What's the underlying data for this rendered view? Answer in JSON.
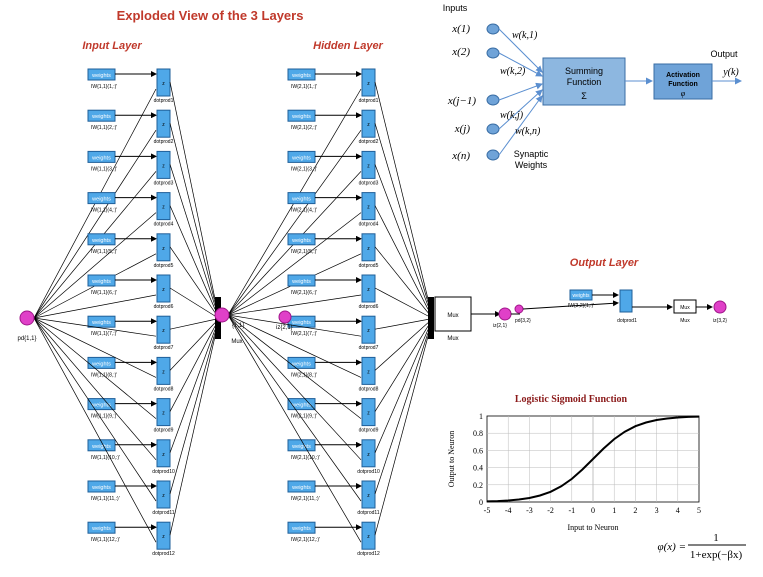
{
  "title": "Exploded View of the 3 Layers",
  "input_layer": {
    "heading": "Input Layer",
    "port_label": "pd{1,1}",
    "weight_label": "weights",
    "weight_tags": [
      "IW{1,1}(1,:)'",
      "IW{1,1}(2,:)'",
      "IW{1,1}(3,:)'",
      "IW{1,1}(4,:)'",
      "IW{1,1}(5,:)'",
      "IW{1,1}(6,:)'",
      "IW{1,1}(7,:)'",
      "IW{1,1}(8,:)'",
      "IW{1,1}(9,:)'",
      "IW{1,1}(10,:)'",
      "IW{1,1}(11,:)'",
      "IW{1,1}(12,:)'"
    ],
    "dot_tags": [
      "dotprod1",
      "dotprod2",
      "dotprod3",
      "dotprod4",
      "dotprod5",
      "dotprod6",
      "dotprod7",
      "dotprod8",
      "dotprod9",
      "dotprod10",
      "dotprod11",
      "dotprod12"
    ],
    "mux_label": "Mux",
    "out_port_label": "{1,1}"
  },
  "hidden_layer": {
    "heading": "Hidden Layer",
    "weight_label": "weights",
    "in_port_label": "iz{2,1}",
    "weight_tags": [
      "IW{2,1}(1,:)'",
      "IW{2,1}(2,:)'",
      "IW{2,1}(3,:)'",
      "IW{2,1}(4,:)'",
      "IW{2,1}(5,:)'",
      "IW{2,1}(6,:)'",
      "IW{2,1}(7,:)'",
      "IW{2,1}(8,:)'",
      "IW{2,1}(9,:)'",
      "IW{2,1}(10,:)'",
      "IW{2,1}(11,:)'",
      "IW{2,1}(12,:)'"
    ],
    "dot_tags": [
      "dotprod1",
      "dotprod2",
      "dotprod3",
      "dotprod4",
      "dotprod5",
      "dotprod6",
      "dotprod7",
      "dotprod8",
      "dotprod9",
      "dotprod10",
      "dotprod11",
      "dotprod12"
    ],
    "mux_label": "Mux",
    "mux_tag": "Mux"
  },
  "output_layer": {
    "heading": "Output Layer",
    "in_port_label": "iz{2,1}",
    "port2_label": "pd{3,2}",
    "weight_label": "weights",
    "weight_tag": "IW{3,2}(1,:)'",
    "dot_tag": "dotprod1",
    "mux_label": "Mux",
    "mux_tag": "Mux",
    "out_port_label": "iz{3,2}"
  },
  "neuron_model": {
    "inputs_label": "Inputs",
    "inputs": [
      "x(1)",
      "x(2)",
      "x(j−1)",
      "x(j)",
      "x(n)"
    ],
    "weights": [
      "w(k,1)",
      "w(k,2)",
      "w(k,j)",
      "w(k,n)"
    ],
    "synaptic_label_1": "Synaptic",
    "synaptic_label_2": "Weights",
    "summing_line1": "Summing",
    "summing_line2": "Function",
    "summing_symbol": "Σ",
    "activation_line1": "Activation",
    "activation_line2": "Function",
    "activation_symbol": "φ",
    "output_label": "Output",
    "output_symbol": "y(k)",
    "colors": {
      "box": "#8db7e0",
      "box_border": "#3a6ea5",
      "node": "#6fa3d8"
    }
  },
  "chart_data": {
    "type": "line",
    "title": "Logistic Sigmoid Function",
    "xlabel": "Input to Neuron",
    "ylabel": "Output to Neuron",
    "xlim": [
      -5,
      5
    ],
    "ylim": [
      0,
      1
    ],
    "xticks": [
      -5,
      -4,
      -3,
      -2,
      -1,
      0,
      1,
      2,
      3,
      4,
      5
    ],
    "yticks": [
      0,
      0.2,
      0.4,
      0.6,
      0.8,
      1
    ],
    "ytick_labels": [
      "0",
      "0.2",
      "0.4",
      "0.6",
      "0.8",
      "1"
    ],
    "series": [
      {
        "x": [
          -5,
          -4.5,
          -4,
          -3.5,
          -3,
          -2.5,
          -2,
          -1.5,
          -1,
          -0.5,
          0,
          0.5,
          1,
          1.5,
          2,
          2.5,
          3,
          3.5,
          4,
          4.5,
          5
        ],
        "y": [
          0.007,
          0.011,
          0.018,
          0.029,
          0.047,
          0.076,
          0.119,
          0.182,
          0.269,
          0.378,
          0.5,
          0.622,
          0.731,
          0.818,
          0.881,
          0.924,
          0.953,
          0.971,
          0.982,
          0.989,
          0.993
        ]
      }
    ],
    "grid": true,
    "formula_lhs": "φ(x) =",
    "formula_num": "1",
    "formula_den": "1+exp(−βx)"
  },
  "colors": {
    "title": "#c0392b",
    "heading": "#c0392b",
    "block_fill": "#4fa8e8",
    "block_border": "#1f5f99",
    "port_fill": "#e040c8",
    "port_border": "#a0168a"
  }
}
